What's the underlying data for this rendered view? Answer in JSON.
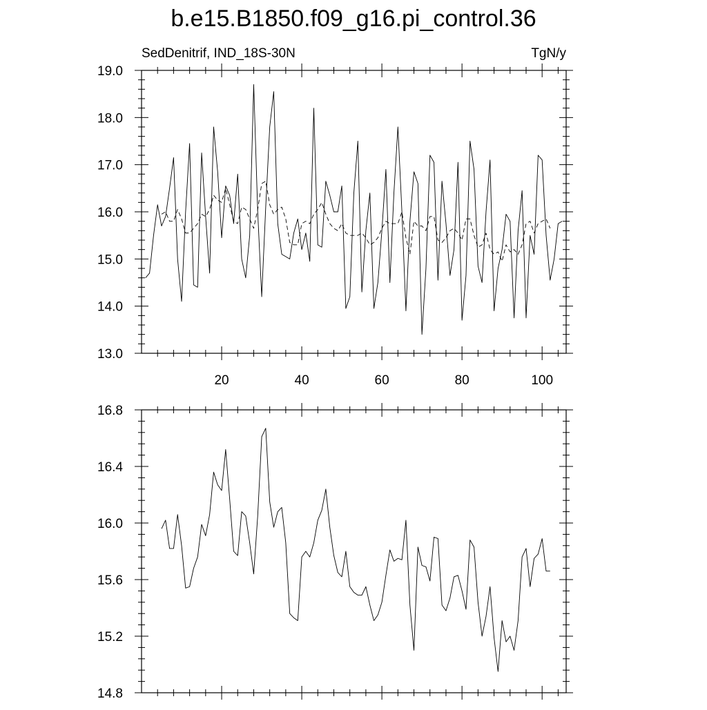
{
  "title": "b.e15.B1850.f09_g16.pi_control.36",
  "chart_data": [
    {
      "type": "line",
      "title": "b.e15.B1850.f09_g16.pi_control.36",
      "left_label": "SedDenitrif, IND_18S-30N",
      "right_label": "TgN/y",
      "x_ticks": [
        "20",
        "40",
        "60",
        "80",
        "100"
      ],
      "y_ticks": [
        "13.0",
        "14.0",
        "15.0",
        "16.0",
        "17.0",
        "18.0",
        "19.0"
      ],
      "xlim": [
        0,
        106
      ],
      "ylim": [
        13.0,
        19.0
      ],
      "grid": false,
      "x": [
        1,
        2,
        3,
        4,
        5,
        6,
        7,
        8,
        9,
        10,
        11,
        12,
        13,
        14,
        15,
        16,
        17,
        18,
        19,
        20,
        21,
        22,
        23,
        24,
        25,
        26,
        27,
        28,
        29,
        30,
        31,
        32,
        33,
        34,
        35,
        36,
        37,
        38,
        39,
        40,
        41,
        42,
        43,
        44,
        45,
        46,
        47,
        48,
        49,
        50,
        51,
        52,
        53,
        54,
        55,
        56,
        57,
        58,
        59,
        60,
        61,
        62,
        63,
        64,
        65,
        66,
        67,
        68,
        69,
        70,
        71,
        72,
        73,
        74,
        75,
        76,
        77,
        78,
        79,
        80,
        81,
        82,
        83,
        84,
        85,
        86,
        87,
        88,
        89,
        90,
        91,
        92,
        93,
        94,
        95,
        96,
        97,
        98,
        99,
        100,
        101,
        102,
        103,
        104,
        105
      ],
      "series": [
        {
          "style": "solid",
          "values": [
            14.6,
            14.7,
            15.5,
            16.15,
            15.7,
            15.9,
            16.5,
            17.15,
            15.0,
            14.1,
            16.0,
            17.45,
            14.45,
            14.4,
            17.25,
            15.9,
            14.7,
            17.8,
            16.85,
            15.45,
            16.55,
            16.35,
            15.75,
            16.8,
            15.0,
            14.6,
            15.5,
            18.7,
            16.0,
            14.2,
            16.1,
            17.8,
            18.55,
            15.75,
            15.1,
            15.05,
            15.0,
            15.55,
            15.85,
            15.2,
            15.55,
            14.95,
            18.2,
            15.3,
            15.25,
            16.65,
            16.35,
            16.0,
            16.0,
            16.55,
            13.95,
            14.2,
            16.4,
            17.5,
            14.3,
            15.6,
            16.4,
            13.95,
            14.5,
            15.6,
            16.9,
            14.5,
            16.4,
            17.8,
            16.0,
            13.9,
            15.8,
            16.85,
            16.6,
            13.4,
            14.8,
            17.2,
            17.05,
            14.55,
            16.65,
            15.75,
            14.65,
            15.2,
            17.05,
            13.7,
            14.65,
            17.5,
            16.9,
            14.85,
            14.5,
            16.0,
            17.1,
            13.9,
            14.8,
            15.2,
            15.95,
            15.8,
            13.75,
            15.6,
            16.45,
            13.75,
            15.5,
            15.1,
            17.2,
            17.1,
            15.5,
            14.55,
            15.0,
            15.75,
            15.8
          ]
        },
        {
          "style": "dashed",
          "values": [
            null,
            null,
            null,
            null,
            15.95,
            16.0,
            15.8,
            15.8,
            16.05,
            15.85,
            15.55,
            15.55,
            15.65,
            15.75,
            15.95,
            15.9,
            16.05,
            16.35,
            16.25,
            16.2,
            16.5,
            16.15,
            15.8,
            15.75,
            16.1,
            16.05,
            15.85,
            15.65,
            16.05,
            16.6,
            16.65,
            16.15,
            15.95,
            16.05,
            16.1,
            15.85,
            15.35,
            15.3,
            15.3,
            15.75,
            15.8,
            15.75,
            15.95,
            16.05,
            16.2,
            15.95,
            15.75,
            15.65,
            15.6,
            15.75,
            15.55,
            15.5,
            15.5,
            15.5,
            15.55,
            15.45,
            15.3,
            15.35,
            15.45,
            15.65,
            15.8,
            15.75,
            15.75,
            15.75,
            16.0,
            15.45,
            15.1,
            15.8,
            15.7,
            15.7,
            15.6,
            15.9,
            15.9,
            15.4,
            15.35,
            15.45,
            15.6,
            15.65,
            15.55,
            15.4,
            15.85,
            15.85,
            15.5,
            15.25,
            15.3,
            15.55,
            15.2,
            15.1,
            15.15,
            14.95,
            15.3,
            15.15,
            15.2,
            15.1,
            15.3,
            15.75,
            15.8,
            15.55,
            15.75,
            15.8,
            15.85,
            15.65,
            null,
            null,
            null
          ]
        }
      ]
    },
    {
      "type": "line",
      "x_ticks": [
        "20",
        "40",
        "60",
        "80",
        "100"
      ],
      "y_ticks": [
        "14.8",
        "15.2",
        "15.6",
        "16.0",
        "16.4",
        "16.8"
      ],
      "xlim": [
        0,
        106
      ],
      "ylim": [
        14.8,
        16.8
      ],
      "grid": false,
      "x": [
        5,
        6,
        7,
        8,
        9,
        10,
        11,
        12,
        13,
        14,
        15,
        16,
        17,
        18,
        19,
        20,
        21,
        22,
        23,
        24,
        25,
        26,
        27,
        28,
        29,
        30,
        31,
        32,
        33,
        34,
        35,
        36,
        37,
        38,
        39,
        40,
        41,
        42,
        43,
        44,
        45,
        46,
        47,
        48,
        49,
        50,
        51,
        52,
        53,
        54,
        55,
        56,
        57,
        58,
        59,
        60,
        61,
        62,
        63,
        64,
        65,
        66,
        67,
        68,
        69,
        70,
        71,
        72,
        73,
        74,
        75,
        76,
        77,
        78,
        79,
        80,
        81,
        82,
        83,
        84,
        85,
        86,
        87,
        88,
        89,
        90,
        91,
        92,
        93,
        94,
        95,
        96,
        97,
        98,
        99,
        100,
        101,
        102
      ],
      "series": [
        {
          "style": "solid",
          "values": [
            15.96,
            16.02,
            15.82,
            15.82,
            16.06,
            15.84,
            15.54,
            15.55,
            15.68,
            15.76,
            15.99,
            15.91,
            16.06,
            16.36,
            16.27,
            16.23,
            16.52,
            16.17,
            15.8,
            15.77,
            16.08,
            16.05,
            15.86,
            15.64,
            16.05,
            16.61,
            16.67,
            16.15,
            15.97,
            16.08,
            16.11,
            15.86,
            15.36,
            15.33,
            15.31,
            15.76,
            15.8,
            15.76,
            15.86,
            16.02,
            16.09,
            16.24,
            15.97,
            15.77,
            15.65,
            15.62,
            15.8,
            15.55,
            15.51,
            15.49,
            15.49,
            15.55,
            15.42,
            15.31,
            15.35,
            15.44,
            15.63,
            15.81,
            15.73,
            15.75,
            15.74,
            16.02,
            15.42,
            15.1,
            15.83,
            15.7,
            15.69,
            15.59,
            15.9,
            15.89,
            15.42,
            15.38,
            15.47,
            15.62,
            15.63,
            15.52,
            15.39,
            15.88,
            15.83,
            15.44,
            15.2,
            15.34,
            15.55,
            15.19,
            14.95,
            15.31,
            15.16,
            15.2,
            15.1,
            15.31,
            15.76,
            15.82,
            15.55,
            15.75,
            15.78,
            15.89,
            15.66,
            15.66
          ]
        }
      ]
    }
  ]
}
